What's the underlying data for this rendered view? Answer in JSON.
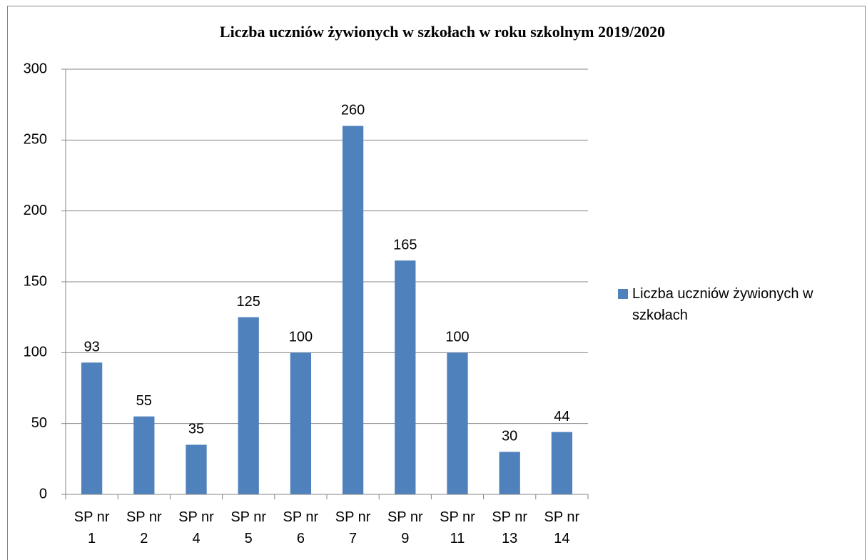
{
  "chart_data": {
    "type": "bar",
    "title": "Liczba uczniów żywionych w szkołach w roku szkolnym 2019/2020",
    "categories": [
      "SP nr 1",
      "SP nr 2",
      "SP nr 4",
      "SP nr 5",
      "SP nr 6",
      "SP nr 7",
      "SP nr 9",
      "SP nr 11",
      "SP nr 13",
      "SP nr 14"
    ],
    "series": [
      {
        "name": "Liczba uczniów żywionych w szkołach",
        "color": "#4f81bd",
        "values": [
          93,
          55,
          35,
          125,
          100,
          260,
          165,
          100,
          30,
          44
        ]
      }
    ],
    "ylim": [
      0,
      300
    ],
    "yticks": [
      0,
      50,
      100,
      150,
      200,
      250,
      300
    ],
    "grid": true,
    "legend": "right"
  }
}
